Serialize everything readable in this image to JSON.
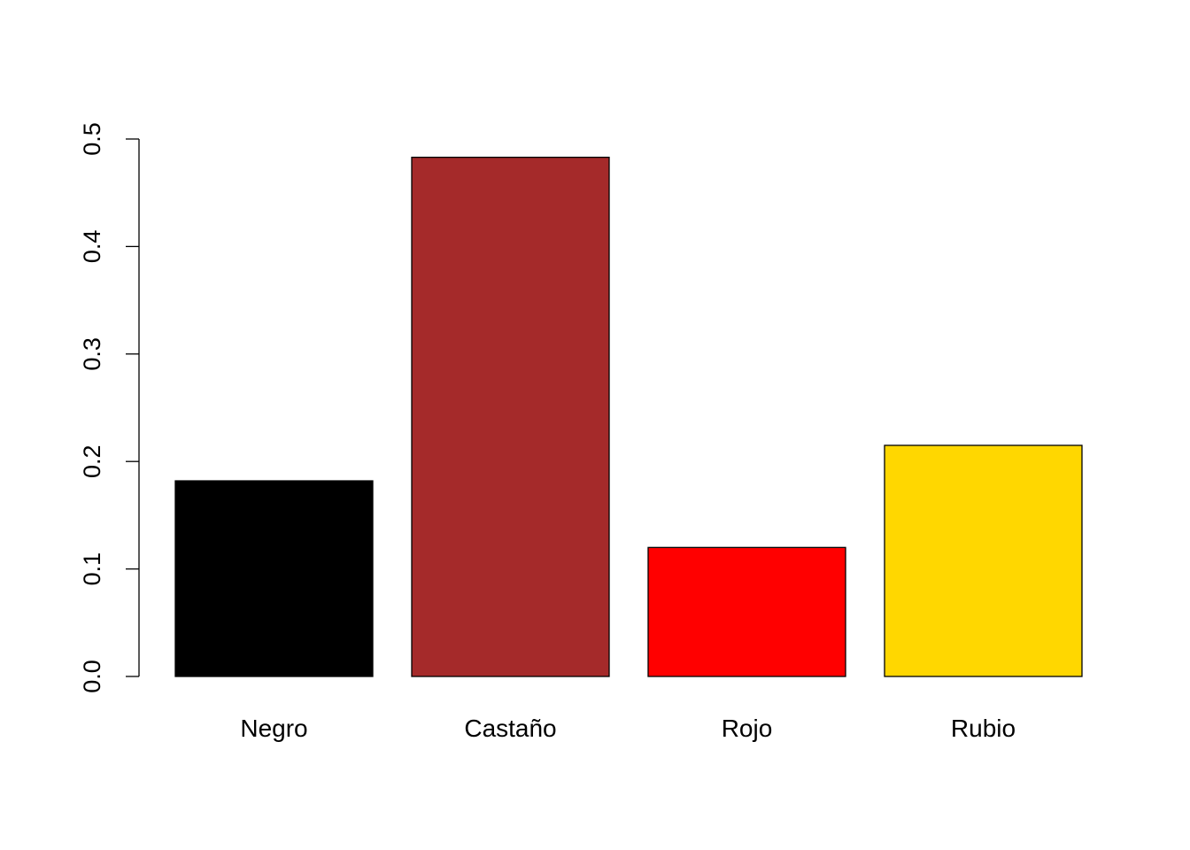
{
  "chart_data": {
    "type": "bar",
    "categories": [
      "Negro",
      "Castaño",
      "Rojo",
      "Rubio"
    ],
    "values": [
      0.182,
      0.483,
      0.12,
      0.215
    ],
    "colors": [
      "#000000",
      "#A52A2A",
      "#FF0000",
      "#FFD700"
    ],
    "ylim": [
      0,
      0.5
    ],
    "yticks": [
      {
        "value": 0,
        "label": "0.0"
      },
      {
        "value": 0.1,
        "label": "0.1"
      },
      {
        "value": 0.2,
        "label": "0.2"
      },
      {
        "value": 0.3,
        "label": "0.3"
      },
      {
        "value": 0.4,
        "label": "0.4"
      },
      {
        "value": 0.5,
        "label": "0.5"
      }
    ],
    "grid": false,
    "legend": "none"
  }
}
